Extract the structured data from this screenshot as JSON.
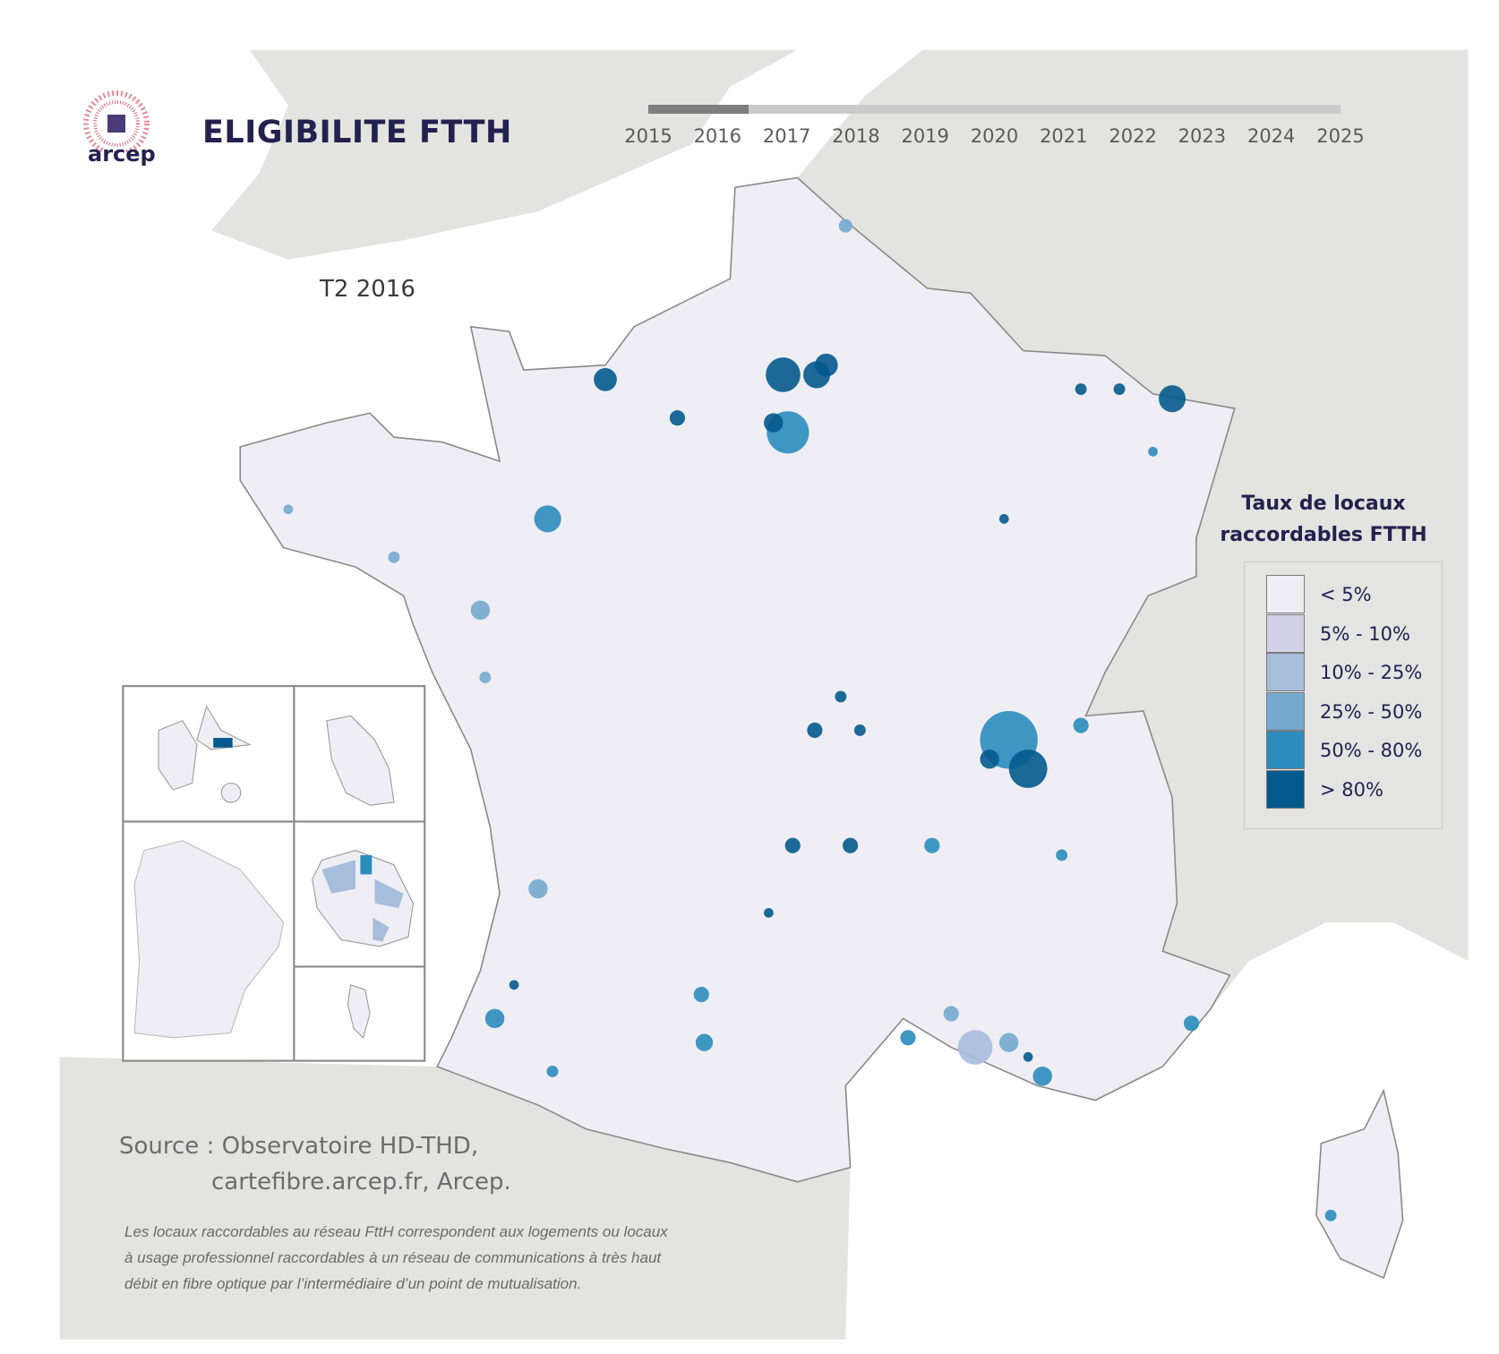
{
  "header": {
    "logo_text": "arcep",
    "title": "ELIGIBILITE FTTH"
  },
  "timeline": {
    "years": [
      "2015",
      "2016",
      "2017",
      "2018",
      "2019",
      "2020",
      "2021",
      "2022",
      "2023",
      "2024",
      "2025"
    ],
    "selected_year": "2016"
  },
  "period_label": "T2 2016",
  "legend": {
    "title_line1": "Taux de locaux",
    "title_line2": "raccordables FTTH",
    "classes": [
      {
        "label": "< 5%",
        "color": "#efeef5"
      },
      {
        "label": "5% - 10%",
        "color": "#d0d1e6"
      },
      {
        "label": "10% - 25%",
        "color": "#a6bddb"
      },
      {
        "label": "25% - 50%",
        "color": "#74a9cf"
      },
      {
        "label": "50% - 80%",
        "color": "#2b8cbe"
      },
      {
        "label": "> 80%",
        "color": "#045a8d"
      }
    ]
  },
  "source": {
    "line1": "Source : Observatoire HD-THD,",
    "line2": "cartefibre.arcep.fr, Arcep."
  },
  "note": {
    "lines": [
      "Les locaux raccordables au réseau FttH correspondent aux logements ou locaux",
      "à usage professionnel raccordables à un réseau de communications à très haut",
      "débit en fibre optique par l’intermédiaire d’un point de mutualisation."
    ]
  },
  "colors": {
    "land_background": "#e3e3df",
    "sea": "#ffffff",
    "france_fill": "#efeef5",
    "border": "#8a8a8a",
    "title": "#23214f"
  }
}
